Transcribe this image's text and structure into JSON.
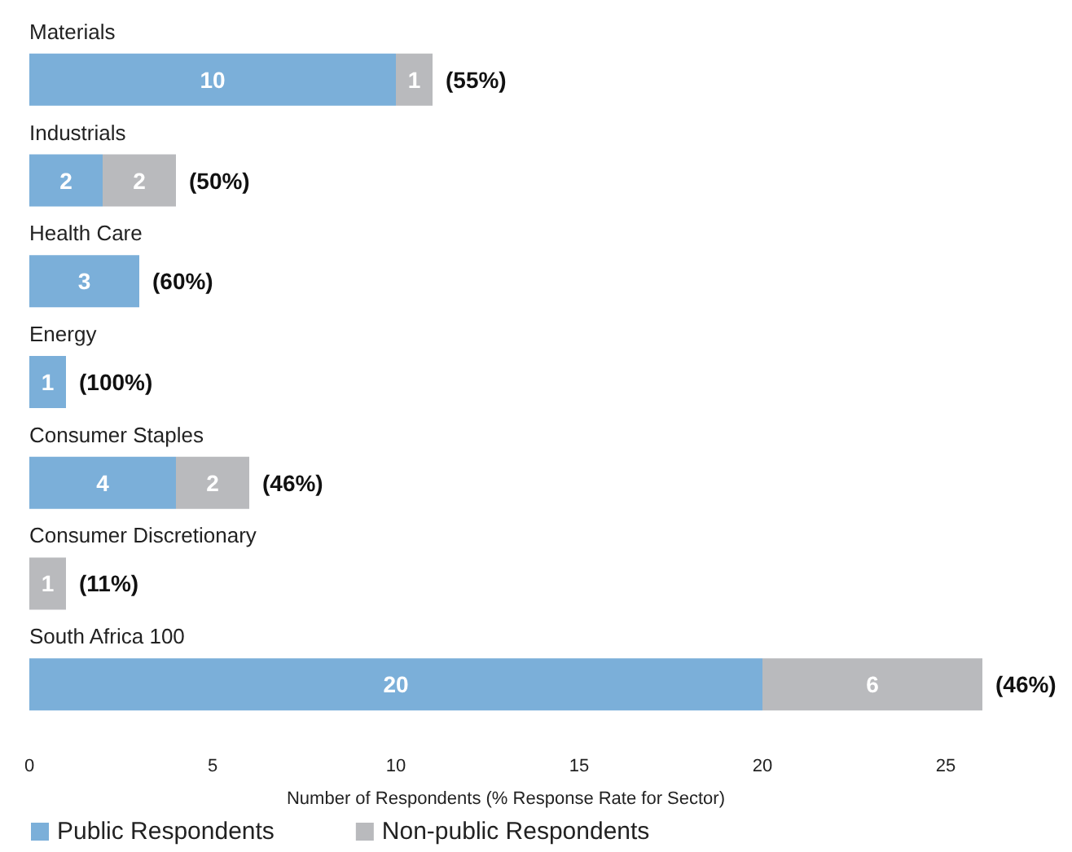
{
  "chart_data": {
    "type": "bar",
    "orientation": "horizontal",
    "stacked": true,
    "categories": [
      "Materials",
      "Industrials",
      "Health Care",
      "Energy",
      "Consumer Staples",
      "Consumer Discretionary",
      "South Africa 100"
    ],
    "series": [
      {
        "name": "Public Respondents",
        "color": "#7bafd9",
        "values": [
          10,
          2,
          3,
          1,
          4,
          null,
          20
        ]
      },
      {
        "name": "Non-public Respondents",
        "color": "#b9babd",
        "values": [
          1,
          2,
          null,
          null,
          2,
          1,
          6
        ]
      }
    ],
    "xlabel": "Number of Respondents (% Response Rate for Sector)",
    "xlim": [
      0,
      26
    ],
    "xticks": [
      0,
      5,
      10,
      15,
      20,
      25
    ],
    "data_labels": true,
    "grid": false,
    "legend": "bottom left",
    "annotations": [
      {
        "text": "(55%)",
        "x": 11,
        "y": "Materials"
      },
      {
        "text": "(50%)",
        "x": 4,
        "y": "Industrials"
      },
      {
        "text": "(60%)",
        "x": 3,
        "y": "Health Care"
      },
      {
        "text": "(100%)",
        "x": 1,
        "y": "Energy"
      },
      {
        "text": "(46%)",
        "x": 6,
        "y": "Consumer Staples"
      },
      {
        "text": "(11%)",
        "x": 1,
        "y": "Consumer Discretionary"
      },
      {
        "text": "(46%)",
        "x": 26,
        "y": "South Africa 100"
      }
    ]
  }
}
